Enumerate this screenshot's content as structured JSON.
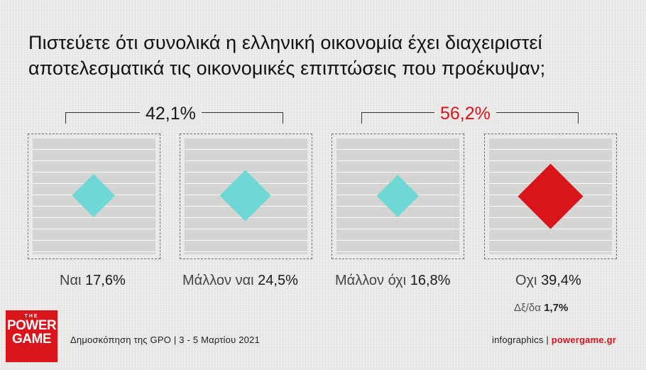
{
  "title": "Πιστεύετε ότι συνολικά η ελληνική οικονομία έχει διαχειριστεί αποτελεσματικά τις οικονομικές επιπτώσεις που προέκυψαν;",
  "colors": {
    "positive": "#6fd8d4",
    "highlight": "#d9141b",
    "panel_bg": "#d4d4d2"
  },
  "groups": [
    {
      "total": "42,1%",
      "color": "#1a1a1a"
    },
    {
      "total": "56,2%",
      "color": "#d9141b"
    }
  ],
  "chart_data": {
    "type": "other",
    "title": "Πιστεύετε ότι συνολικά η ελληνική οικονομία έχει διαχειριστεί αποτελεσματικά τις οικονομικές επιπτώσεις που προέκυψαν;",
    "categories": [
      "Ναι",
      "Μάλλον ναι",
      "Μάλλον όχι",
      "Οχι"
    ],
    "values": [
      17.6,
      24.5,
      16.8,
      39.4
    ],
    "value_labels": [
      "17,6%",
      "24,5%",
      "16,8%",
      "39,4%"
    ],
    "mark_colors": [
      "#6fd8d4",
      "#6fd8d4",
      "#6fd8d4",
      "#d9141b"
    ],
    "group_totals": [
      {
        "categories": [
          "Ναι",
          "Μάλλον ναι"
        ],
        "value": 42.1,
        "label": "42,1%"
      },
      {
        "categories": [
          "Μάλλον όχι",
          "Οχι"
        ],
        "value": 56.2,
        "label": "56,2%"
      }
    ],
    "extra": {
      "label": "Δξ/δα",
      "value": 1.7,
      "value_label": "1,7%"
    }
  },
  "logo": {
    "line1": "THE",
    "line2": "POWER",
    "line3": "GAME"
  },
  "footer": {
    "source": "Δημοσκόπηση της GPO |  3 - 5 Μαρτίου 2021",
    "credit": "infographics | ",
    "site": "powergame.gr"
  }
}
